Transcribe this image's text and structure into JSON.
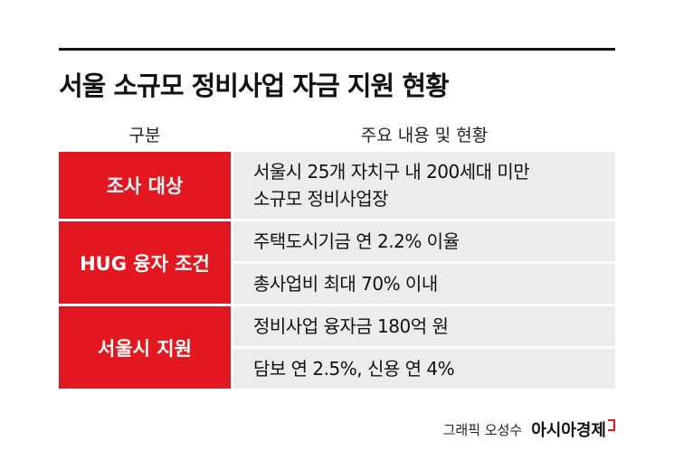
{
  "header": {
    "title": "서울 소규모 정비사업 자금 지원 현황"
  },
  "table": {
    "columns": [
      "구분",
      "주요 내용 및 현황"
    ],
    "rows": [
      {
        "label": "조사 대상",
        "cells": [
          [
            "서울시 25개 자치구 내 200세대 미만",
            "소규모 정비사업장"
          ]
        ]
      },
      {
        "label": "HUG 융자 조건",
        "cells": [
          [
            "주택도시기금 연 2.2% 이율"
          ],
          [
            "총사업비 최대 70% 이내"
          ]
        ]
      },
      {
        "label": "서울시 지원",
        "cells": [
          [
            "정비사업 융자금 180억 원"
          ],
          [
            "담보 연 2.5%, 신용 연 4%"
          ]
        ]
      }
    ]
  },
  "footer": {
    "credit": "그래픽 오성수",
    "brand": "아시아경제"
  }
}
